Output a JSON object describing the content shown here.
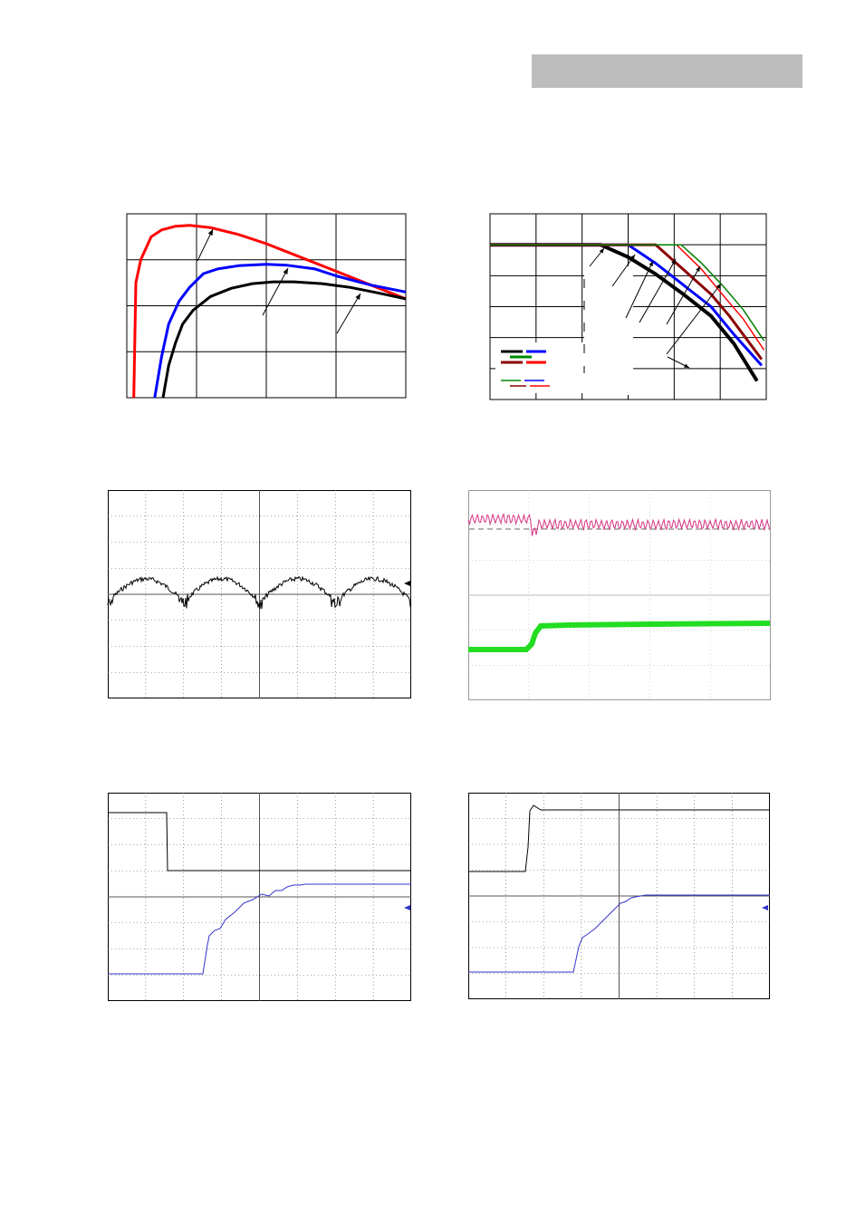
{
  "header": {
    "label": "",
    "color": "#bdbdbd"
  },
  "chart_data": [
    {
      "type": "line",
      "title": "",
      "xlabel": "",
      "ylabel": "",
      "xlim": [
        0,
        4
      ],
      "ylim": [
        0,
        4
      ],
      "grid": true,
      "series": [
        {
          "color": "#ff0000",
          "x": [
            0.1,
            0.13,
            0.2,
            0.35,
            0.5,
            0.7,
            0.9,
            1.2,
            1.6,
            2.0,
            2.5,
            3.0,
            3.5,
            4.0
          ],
          "y": [
            0.0,
            2.5,
            3.0,
            3.5,
            3.65,
            3.73,
            3.75,
            3.7,
            3.55,
            3.35,
            3.05,
            2.75,
            2.45,
            2.15
          ]
        },
        {
          "color": "#0000ff",
          "x": [
            0.4,
            0.5,
            0.6,
            0.75,
            0.9,
            1.1,
            1.3,
            1.6,
            2.0,
            2.3,
            2.7,
            3.0,
            3.5,
            4.0
          ],
          "y": [
            0.0,
            0.9,
            1.6,
            2.1,
            2.4,
            2.7,
            2.8,
            2.87,
            2.9,
            2.88,
            2.8,
            2.65,
            2.45,
            2.3
          ]
        },
        {
          "color": "#000000",
          "x": [
            0.52,
            0.6,
            0.7,
            0.8,
            0.95,
            1.2,
            1.5,
            1.8,
            2.1,
            2.4,
            2.8,
            3.2,
            3.6,
            4.0
          ],
          "y": [
            0.0,
            0.7,
            1.2,
            1.6,
            1.9,
            2.2,
            2.38,
            2.48,
            2.52,
            2.52,
            2.48,
            2.4,
            2.28,
            2.15
          ]
        }
      ],
      "arrows": 3
    },
    {
      "type": "line",
      "title": "",
      "xlabel": "",
      "ylabel": "",
      "xlim": [
        0,
        6
      ],
      "ylim": [
        0,
        6
      ],
      "grid": true,
      "series": [
        {
          "color": "#000000",
          "x": [
            0,
            2.4,
            3.0,
            3.6,
            4.2,
            4.8,
            5.3,
            5.8
          ],
          "y": [
            5,
            5,
            4.6,
            4.05,
            3.4,
            2.7,
            1.8,
            0.6
          ]
        },
        {
          "color": "#0000ff",
          "x": [
            0,
            3.0,
            3.6,
            4.2,
            4.8,
            5.3,
            5.9
          ],
          "y": [
            5,
            5,
            4.4,
            3.7,
            3.0,
            2.1,
            1.1
          ]
        },
        {
          "color": "#8b0000",
          "x": [
            0,
            3.6,
            4.2,
            4.8,
            5.2,
            5.9
          ],
          "y": [
            5,
            5,
            4.2,
            3.4,
            2.7,
            1.3
          ]
        },
        {
          "color": "#ff0000",
          "x": [
            0,
            4.05,
            4.6,
            5.1,
            5.5,
            5.95
          ],
          "y": [
            5,
            5,
            4.2,
            3.3,
            2.6,
            1.6
          ]
        },
        {
          "color": "#008000",
          "x": [
            0,
            4.15,
            4.6,
            5.1,
            5.5,
            5.95
          ],
          "y": [
            5,
            5,
            4.4,
            3.6,
            2.9,
            1.9
          ]
        }
      ],
      "legend_keys": [
        {
          "colors": [
            "#000000",
            "#0000ff"
          ],
          "row": 1
        },
        {
          "colors": [
            "#008000"
          ],
          "row": 2
        },
        {
          "colors": [
            "#8b0000",
            "#ff0000"
          ],
          "row": 3
        },
        {
          "colors": [
            "#008000",
            "#0000ff"
          ],
          "row": 4
        },
        {
          "colors": [
            "#8b0000",
            "#ff0000"
          ],
          "row": 5
        }
      ],
      "arrows": 7
    },
    {
      "type": "scope",
      "description_visible": false,
      "channels": [
        {
          "color": "#000000",
          "shape": "rectified-ripple"
        }
      ],
      "divisions": [
        8,
        8
      ],
      "marker": "left-arrow"
    },
    {
      "type": "scope",
      "channels": [
        {
          "color": "#d63384",
          "shape": "ripple-high"
        },
        {
          "color": "#22dd22",
          "shape": "step-up"
        }
      ],
      "divisions": [
        8,
        6
      ]
    },
    {
      "type": "scope",
      "channels": [
        {
          "color": "#000000",
          "shape": "step-down"
        },
        {
          "color": "#3333cc",
          "shape": "soft-rise"
        }
      ],
      "divisions": [
        8,
        8
      ]
    },
    {
      "type": "scope",
      "channels": [
        {
          "color": "#000000",
          "shape": "step-up"
        },
        {
          "color": "#3333cc",
          "shape": "soft-rise"
        }
      ],
      "divisions": [
        8,
        8
      ]
    }
  ]
}
